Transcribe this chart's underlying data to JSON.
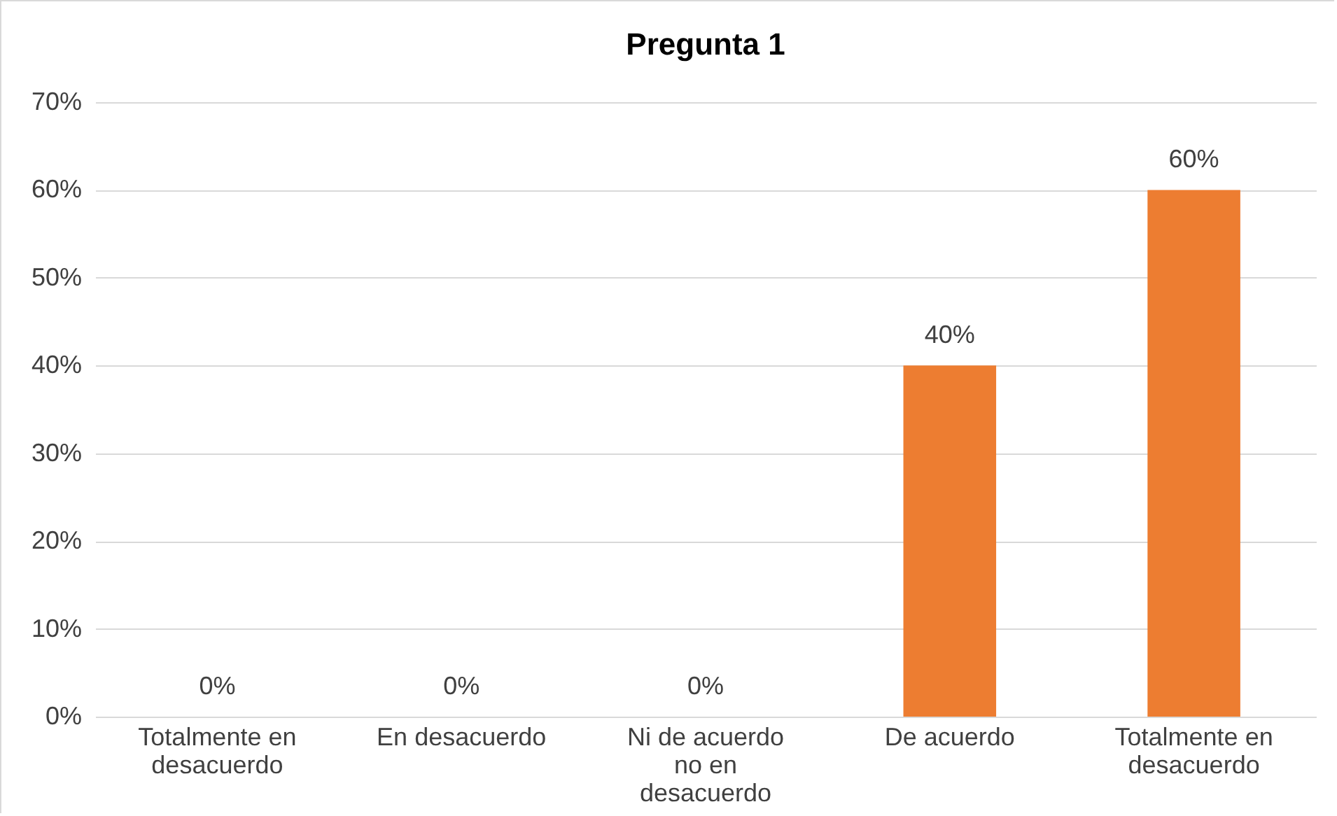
{
  "chart_data": {
    "type": "bar",
    "title": "Pregunta 1",
    "categories": [
      "Totalmente en desacuerdo",
      "En desacuerdo",
      "Ni de acuerdo no en desacuerdo",
      "De acuerdo",
      "Totalmente en desacuerdo"
    ],
    "values": [
      0,
      0,
      0,
      40,
      60
    ],
    "value_labels": [
      "0%",
      "0%",
      "0%",
      "40%",
      "60%"
    ],
    "color": "#ed7d31",
    "ylim": [
      0,
      70
    ],
    "yticks": [
      {
        "value": 0,
        "label": "0%"
      },
      {
        "value": 10,
        "label": "10%"
      },
      {
        "value": 20,
        "label": "20%"
      },
      {
        "value": 30,
        "label": "30%"
      },
      {
        "value": 40,
        "label": "40%"
      },
      {
        "value": 50,
        "label": "50%"
      },
      {
        "value": 60,
        "label": "60%"
      },
      {
        "value": 70,
        "label": "70%"
      }
    ],
    "grid": "y"
  }
}
